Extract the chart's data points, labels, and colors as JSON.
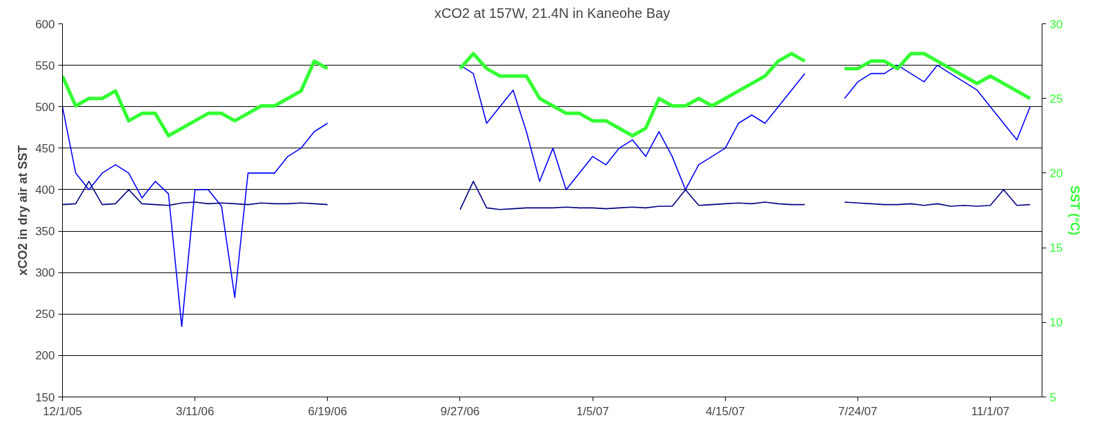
{
  "chart_data": {
    "type": "line",
    "title": "xCO2 at 157W, 21.4N in Kaneohe Bay",
    "ylabel": "xCO2 in dry air at SST",
    "y2label": "SST (°C)",
    "grid": "y",
    "line_style": "solid",
    "marker": "none",
    "x": [
      "2005-12-01",
      "2005-12-11",
      "2005-12-21",
      "2005-12-31",
      "2006-01-10",
      "2006-01-20",
      "2006-01-30",
      "2006-02-09",
      "2006-02-19",
      "2006-03-01",
      "2006-03-11",
      "2006-03-21",
      "2006-03-31",
      "2006-04-10",
      "2006-04-20",
      "2006-04-30",
      "2006-05-10",
      "2006-05-20",
      "2006-05-30",
      "2006-06-09",
      "2006-06-19",
      "2006-06-29",
      "2006-07-09",
      "2006-07-19",
      "2006-07-29",
      "2006-08-08",
      "2006-08-18",
      "2006-08-28",
      "2006-09-07",
      "2006-09-17",
      "2006-09-27",
      "2006-10-07",
      "2006-10-17",
      "2006-10-27",
      "2006-11-06",
      "2006-11-16",
      "2006-11-26",
      "2006-12-06",
      "2006-12-16",
      "2006-12-26",
      "2007-01-05",
      "2007-01-15",
      "2007-01-25",
      "2007-02-04",
      "2007-02-14",
      "2007-02-24",
      "2007-03-06",
      "2007-03-16",
      "2007-03-26",
      "2007-04-05",
      "2007-04-15",
      "2007-04-25",
      "2007-05-05",
      "2007-05-15",
      "2007-05-25",
      "2007-06-04",
      "2007-06-14",
      "2007-06-24",
      "2007-07-04",
      "2007-07-14",
      "2007-07-24",
      "2007-08-03",
      "2007-08-13",
      "2007-08-23",
      "2007-09-02",
      "2007-09-12",
      "2007-09-22",
      "2007-10-02",
      "2007-10-12",
      "2007-10-22",
      "2007-11-01",
      "2007-11-11",
      "2007-11-21",
      "2007-12-01"
    ],
    "series": [
      {
        "color": "#0000ff",
        "values": [
          500,
          420,
          400,
          420,
          430,
          420,
          390,
          410,
          395,
          235,
          400,
          400,
          380,
          270,
          420,
          420,
          420,
          440,
          450,
          470,
          480,
          null,
          null,
          null,
          null,
          null,
          null,
          null,
          null,
          null,
          550,
          540,
          480,
          500,
          520,
          470,
          410,
          450,
          400,
          420,
          440,
          430,
          450,
          460,
          440,
          470,
          440,
          400,
          430,
          440,
          450,
          480,
          490,
          480,
          500,
          520,
          540,
          null,
          null,
          510,
          530,
          540,
          540,
          550,
          540,
          530,
          550,
          540,
          530,
          520,
          500,
          480,
          460,
          500
        ]
      },
      {
        "color": "#000080",
        "values": [
          382,
          383,
          410,
          382,
          383,
          400,
          383,
          382,
          381,
          384,
          385,
          383,
          384,
          383,
          382,
          384,
          383,
          383,
          384,
          383,
          382,
          null,
          null,
          null,
          null,
          null,
          null,
          null,
          null,
          null,
          376,
          410,
          378,
          376,
          377,
          378,
          378,
          378,
          379,
          378,
          378,
          377,
          378,
          379,
          378,
          380,
          380,
          400,
          381,
          382,
          383,
          384,
          383,
          385,
          383,
          382,
          382,
          null,
          null,
          385,
          384,
          383,
          382,
          382,
          383,
          381,
          383,
          380,
          381,
          380,
          381,
          400,
          381,
          382
        ]
      },
      {
        "color": "#33ff33",
        "axis": "y2",
        "values": [
          26.5,
          24.5,
          25,
          25,
          25.5,
          23.5,
          24,
          24,
          22.5,
          23,
          23.5,
          24,
          24,
          23.5,
          24,
          24.5,
          24.5,
          25,
          25.5,
          27.5,
          27,
          null,
          null,
          null,
          null,
          null,
          null,
          null,
          null,
          null,
          27,
          28,
          27,
          26.5,
          26.5,
          26.5,
          25,
          24.5,
          24,
          24,
          23.5,
          23.5,
          23,
          22.5,
          23,
          25,
          24.5,
          24.5,
          25,
          24.5,
          25,
          25.5,
          26,
          26.5,
          27.5,
          28,
          27.5,
          null,
          null,
          27,
          27,
          27.5,
          27.5,
          27,
          28,
          28,
          27.5,
          27,
          26.5,
          26,
          26.5,
          26,
          25.5,
          25
        ]
      }
    ],
    "xlim": [
      "2005-12-01",
      "2007-12-10"
    ],
    "xticks": [
      {
        "value": "2005-12-01",
        "label": "12/1/05"
      },
      {
        "value": "2006-03-11",
        "label": "3/11/06"
      },
      {
        "value": "2006-06-19",
        "label": "6/19/06"
      },
      {
        "value": "2006-09-27",
        "label": "9/27/06"
      },
      {
        "value": "2007-01-05",
        "label": "1/5/07"
      },
      {
        "value": "2007-04-15",
        "label": "4/15/07"
      },
      {
        "value": "2007-07-24",
        "label": "7/24/07"
      },
      {
        "value": "2007-11-01",
        "label": "11/1/07"
      }
    ],
    "ylim": [
      150,
      600
    ],
    "yticks": [
      150,
      200,
      250,
      300,
      350,
      400,
      450,
      500,
      550,
      600
    ],
    "y2lim": [
      5,
      30
    ],
    "y2ticks": [
      5,
      10,
      15,
      20,
      25,
      30
    ]
  }
}
